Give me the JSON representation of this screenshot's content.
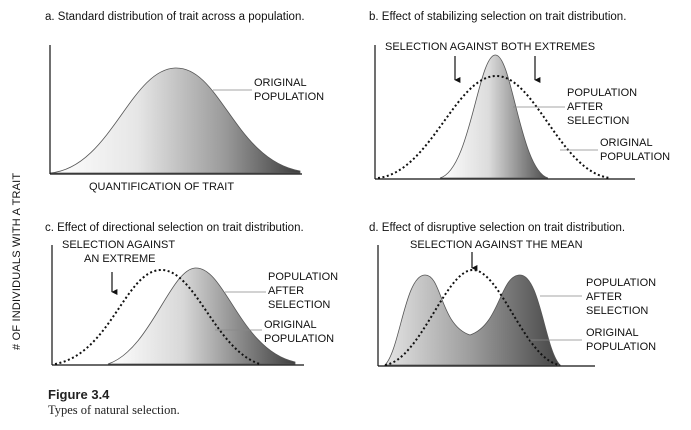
{
  "y_axis_label": "# OF INDIVIDUALS WITH A TRAIT",
  "panels": [
    {
      "id": "a",
      "title": "a. Standard distribution of trait across a population.",
      "annotations": {
        "original_line1": "ORIGINAL",
        "original_line2": "POPULATION"
      },
      "x_label": "QUANTIFICATION OF TRAIT"
    },
    {
      "id": "b",
      "title": "b. Effect of stabilizing selection on trait distribution.",
      "annotations": {
        "selection": "SELECTION AGAINST BOTH EXTREMES",
        "after_line1": "POPULATION",
        "after_line2": "AFTER",
        "after_line3": "SELECTION",
        "original_line1": "ORIGINAL",
        "original_line2": "POPULATION"
      }
    },
    {
      "id": "c",
      "title": "c. Effect of directional selection on trait distribution.",
      "annotations": {
        "selection_line1": "SELECTION AGAINST",
        "selection_line2": "AN EXTREME",
        "after_line1": "POPULATION",
        "after_line2": "AFTER",
        "after_line3": "SELECTION",
        "original_line1": "ORIGINAL",
        "original_line2": "POPULATION"
      }
    },
    {
      "id": "d",
      "title": "d. Effect of disruptive selection on trait distribution.",
      "annotations": {
        "selection": "SELECTION AGAINST THE MEAN",
        "after_line1": "POPULATION",
        "after_line2": "AFTER",
        "after_line3": "SELECTION",
        "original_line1": "ORIGINAL",
        "original_line2": "POPULATION"
      }
    }
  ],
  "caption": {
    "title": "Figure 3.4",
    "text": "Types of natural selection."
  }
}
